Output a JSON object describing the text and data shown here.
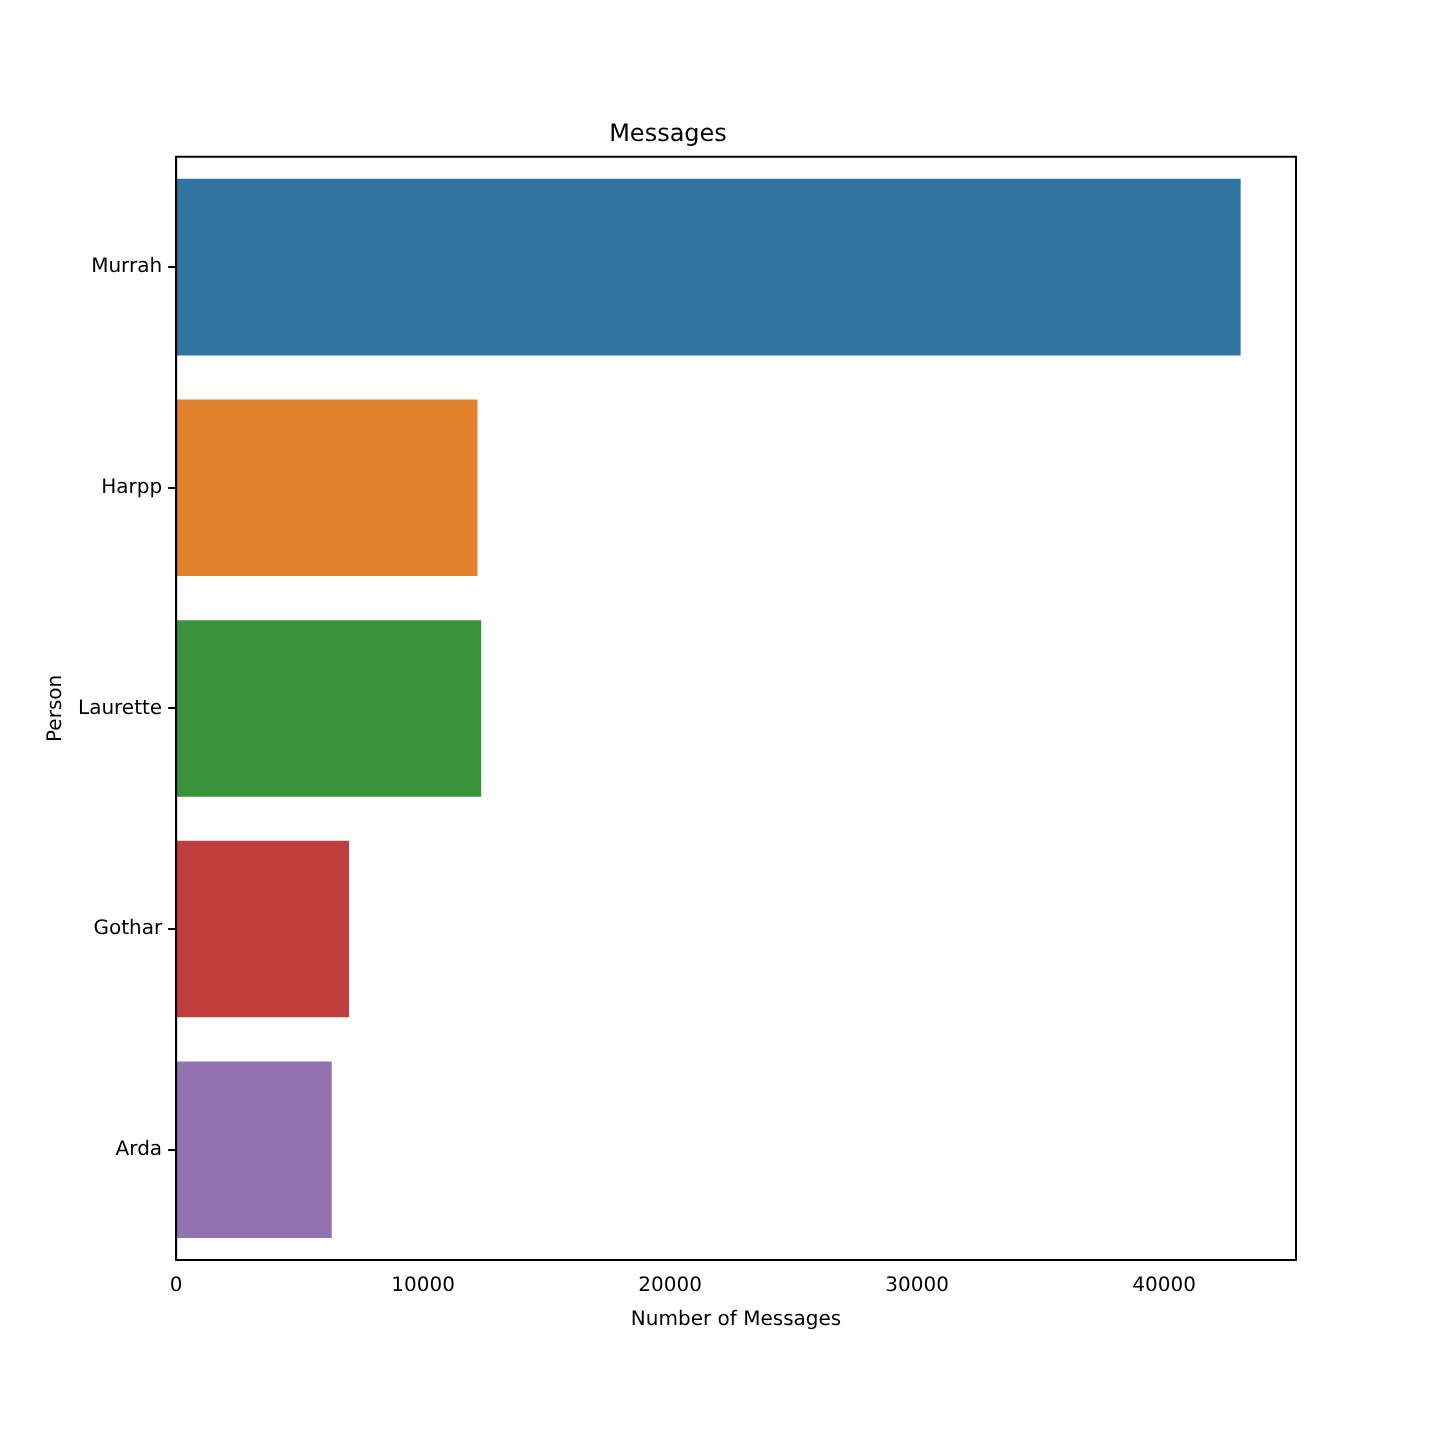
{
  "chart_data": {
    "type": "bar",
    "orientation": "horizontal",
    "title": "Messages",
    "xlabel": "Number of Messages",
    "ylabel": "Person",
    "categories": [
      "Murrah",
      "Harpp",
      "Laurette",
      "Gothar",
      "Arda"
    ],
    "values": [
      43100,
      12200,
      12350,
      7000,
      6300
    ],
    "colors": [
      "#3274a1",
      "#e1812c",
      "#3a923a",
      "#c03d3e",
      "#9372b2"
    ],
    "xlim": [
      0,
      45340
    ],
    "xticks": [
      0,
      10000,
      20000,
      30000,
      40000
    ],
    "grid": false,
    "legend": false
  }
}
